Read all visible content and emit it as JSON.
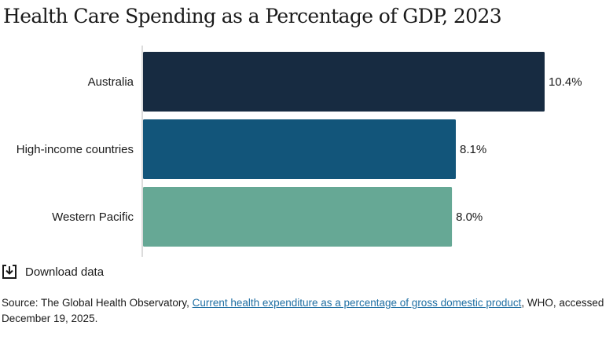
{
  "title": "Health Care Spending as a Percentage of GDP, 2023",
  "chart_data": {
    "type": "bar",
    "orientation": "horizontal",
    "title": "Health Care Spending as a Percentage of GDP, 2023",
    "categories": [
      "Australia",
      "High-income countries",
      "Western Pacific"
    ],
    "values": [
      10.4,
      8.1,
      8.0
    ],
    "value_labels": [
      "10.4%",
      "8.1%",
      "8.0%"
    ],
    "colors": [
      "#172b41",
      "#12557a",
      "#66a895"
    ],
    "xlim": [
      0,
      10.4
    ],
    "grid": false
  },
  "download": {
    "label": "Download data",
    "icon": "download-icon"
  },
  "source": {
    "prefix": "Source: The Global Health Observatory, ",
    "link_text": "Current health expenditure as a percentage of gross domestic product",
    "suffix": ", WHO, accessed December 19, 2025."
  }
}
